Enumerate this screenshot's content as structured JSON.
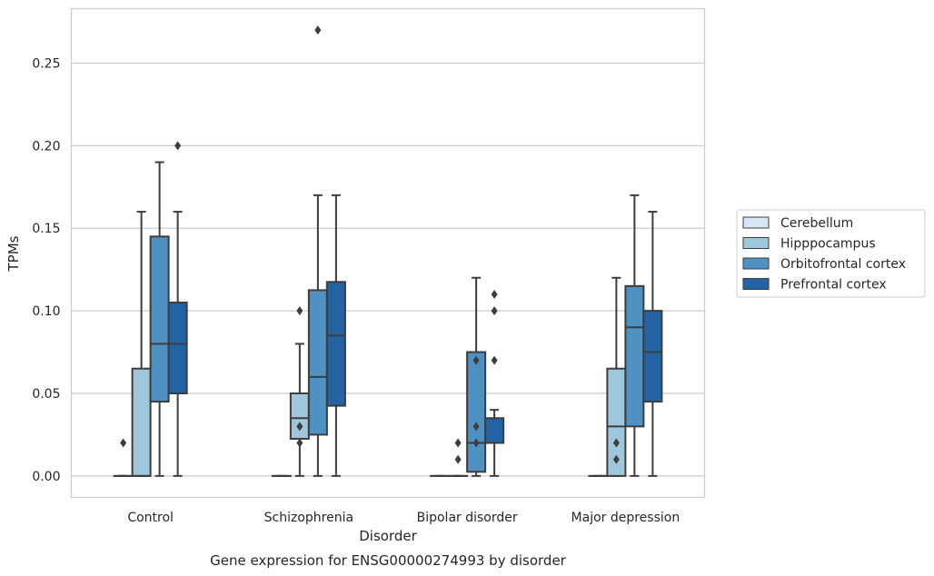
{
  "chart_data": {
    "type": "boxplot",
    "title": "",
    "caption": "Gene expression for ENSG00000274993 by disorder",
    "xlabel": "Disorder",
    "ylabel": "TPMs",
    "ylim": [
      -0.013,
      0.283
    ],
    "yticks": [
      0.0,
      0.05,
      0.1,
      0.15,
      0.2,
      0.25
    ],
    "ytick_labels": [
      "0.00",
      "0.05",
      "0.10",
      "0.15",
      "0.20",
      "0.25"
    ],
    "grid": "horizontal",
    "legend_position": "right",
    "categories": [
      "Control",
      "Schizophrenia",
      "Bipolar disorder",
      "Major depression"
    ],
    "colors": [
      "#d6e6f4",
      "#9ec6dc",
      "#4f91c2",
      "#2363a4"
    ],
    "series": [
      {
        "name": "Cerebellum",
        "boxes": [
          {
            "q1": 0.0,
            "median": 0.0,
            "q3": 0.0,
            "whisker_low": 0.0,
            "whisker_high": 0.0,
            "outliers": [
              0.02
            ]
          },
          {
            "q1": 0.0,
            "median": 0.0,
            "q3": 0.0,
            "whisker_low": 0.0,
            "whisker_high": 0.0,
            "outliers": []
          },
          {
            "q1": 0.0,
            "median": 0.0,
            "q3": 0.0,
            "whisker_low": 0.0,
            "whisker_high": 0.0,
            "outliers": []
          },
          {
            "q1": 0.0,
            "median": 0.0,
            "q3": 0.0,
            "whisker_low": 0.0,
            "whisker_high": 0.0,
            "outliers": []
          }
        ]
      },
      {
        "name": "Hipppocampus",
        "boxes": [
          {
            "q1": 0.0,
            "median": 0.0,
            "q3": 0.065,
            "whisker_low": 0.0,
            "whisker_high": 0.16,
            "outliers": []
          },
          {
            "q1": 0.0225,
            "median": 0.035,
            "q3": 0.05,
            "whisker_low": 0.0,
            "whisker_high": 0.08,
            "outliers": [
              0.1,
              0.03,
              0.02
            ]
          },
          {
            "q1": 0.0,
            "median": 0.0,
            "q3": 0.0,
            "whisker_low": 0.0,
            "whisker_high": 0.0,
            "outliers": [
              0.02,
              0.01
            ]
          },
          {
            "q1": 0.0,
            "median": 0.03,
            "q3": 0.065,
            "whisker_low": 0.0,
            "whisker_high": 0.12,
            "outliers": [
              0.02,
              0.01
            ]
          }
        ]
      },
      {
        "name": "Orbitofrontal cortex",
        "boxes": [
          {
            "q1": 0.045,
            "median": 0.08,
            "q3": 0.145,
            "whisker_low": 0.0,
            "whisker_high": 0.19,
            "outliers": []
          },
          {
            "q1": 0.025,
            "median": 0.06,
            "q3": 0.1125,
            "whisker_low": 0.0,
            "whisker_high": 0.17,
            "outliers": [
              0.27
            ]
          },
          {
            "q1": 0.0025,
            "median": 0.02,
            "q3": 0.075,
            "whisker_low": 0.0,
            "whisker_high": 0.12,
            "outliers": [
              0.07,
              0.03,
              0.02
            ]
          },
          {
            "q1": 0.03,
            "median": 0.09,
            "q3": 0.115,
            "whisker_low": 0.0,
            "whisker_high": 0.17,
            "outliers": []
          }
        ]
      },
      {
        "name": "Prefrontal cortex",
        "boxes": [
          {
            "q1": 0.05,
            "median": 0.08,
            "q3": 0.105,
            "whisker_low": 0.0,
            "whisker_high": 0.16,
            "outliers": [
              0.2
            ]
          },
          {
            "q1": 0.0425,
            "median": 0.085,
            "q3": 0.1175,
            "whisker_low": 0.0,
            "whisker_high": 0.17,
            "outliers": []
          },
          {
            "q1": 0.02,
            "median": 0.02,
            "q3": 0.035,
            "whisker_low": 0.0,
            "whisker_high": 0.04,
            "outliers": [
              0.11,
              0.1,
              0.07
            ]
          },
          {
            "q1": 0.045,
            "median": 0.075,
            "q3": 0.1,
            "whisker_low": 0.0,
            "whisker_high": 0.16,
            "outliers": []
          }
        ]
      }
    ]
  }
}
